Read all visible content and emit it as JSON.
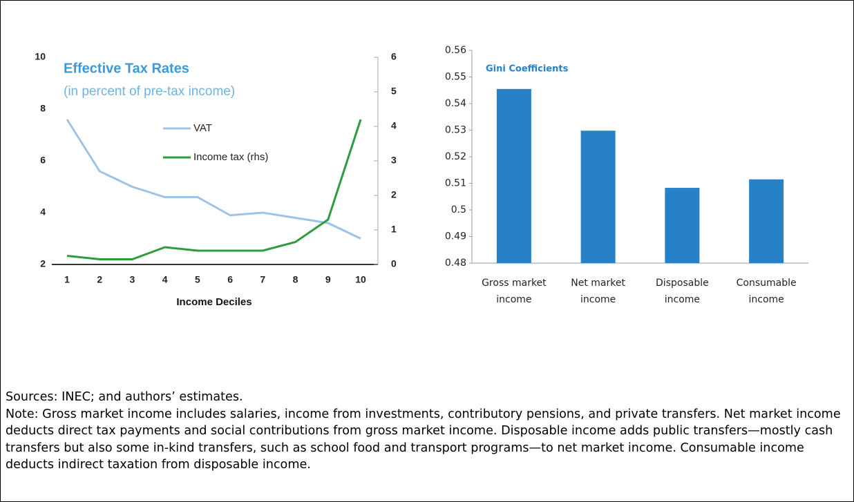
{
  "chart_data": [
    {
      "type": "line",
      "title": "Effective Tax Rates",
      "subtitle": "(in percent of pre-tax income)",
      "xlabel": "Income Deciles",
      "categories": [
        "1",
        "2",
        "3",
        "4",
        "5",
        "6",
        "7",
        "8",
        "9",
        "10"
      ],
      "series": [
        {
          "name": "VAT",
          "color": "#9dc3e6",
          "values": [
            7.6,
            5.6,
            5.0,
            4.6,
            4.6,
            3.9,
            4.0,
            3.8,
            3.6,
            3.0
          ]
        },
        {
          "name": "Income tax (rhs)",
          "color": "#2e9c3a",
          "axis": "y2",
          "values": [
            0.25,
            0.15,
            0.15,
            0.5,
            0.4,
            0.4,
            0.4,
            0.65,
            1.3,
            4.2
          ]
        }
      ],
      "ylim": [
        2,
        10
      ],
      "yticks": [
        2,
        4,
        6,
        8,
        10
      ],
      "y2lim": [
        0,
        6
      ],
      "y2ticks": [
        0,
        1,
        2,
        3,
        4,
        5,
        6
      ]
    },
    {
      "type": "bar",
      "title": "Gini Coefficients",
      "categories": [
        "Gross market income",
        "Net market income",
        "Disposable income",
        "Consumable income"
      ],
      "values": [
        0.5455,
        0.5298,
        0.5083,
        0.5115
      ],
      "color": "#2781c6",
      "ylim": [
        0.48,
        0.56
      ],
      "yticks": [
        0.48,
        0.49,
        0.5,
        0.51,
        0.52,
        0.53,
        0.54,
        0.55,
        0.56
      ]
    }
  ],
  "sources": "Sources: INEC; and authors’ estimates.",
  "note": "Note: Gross market income includes salaries, income from investments, contributory pensions, and private transfers. Net market income deducts direct tax payments and social contributions from gross market income. Disposable income adds public transfers—mostly cash transfers but also some in-kind transfers, such as school food and transport programs—to net market income. Consumable income deducts indirect taxation from disposable income."
}
